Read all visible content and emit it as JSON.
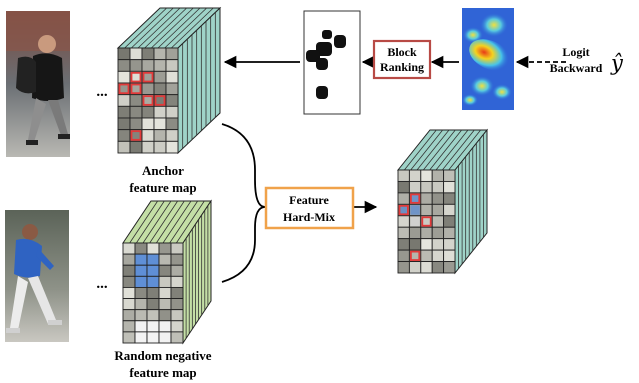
{
  "labels": {
    "anchor_line1": "Anchor",
    "anchor_line2": "feature map",
    "negative_line1": "Random negative",
    "negative_line2": "feature map",
    "ellipsis_top": "...",
    "ellipsis_bottom": "...",
    "block_ranking_line1": "Block",
    "block_ranking_line2": "Ranking",
    "hard_mix_line1": "Feature",
    "hard_mix_line2": "Hard-Mix",
    "logit_line1": "Logit",
    "logit_line2": "Backward",
    "y_hat": "ŷ"
  },
  "colors": {
    "block_ranking_border": "#b84a45",
    "hard_mix_border": "#f0a24a",
    "anchor_stripes": "#9fd3c8",
    "negative_stripes": "#c4dfa6",
    "output_stripes": "#9fd3c8",
    "highlight_red": "#e23a3a",
    "highlight_blue": "#5f8fd6"
  }
}
